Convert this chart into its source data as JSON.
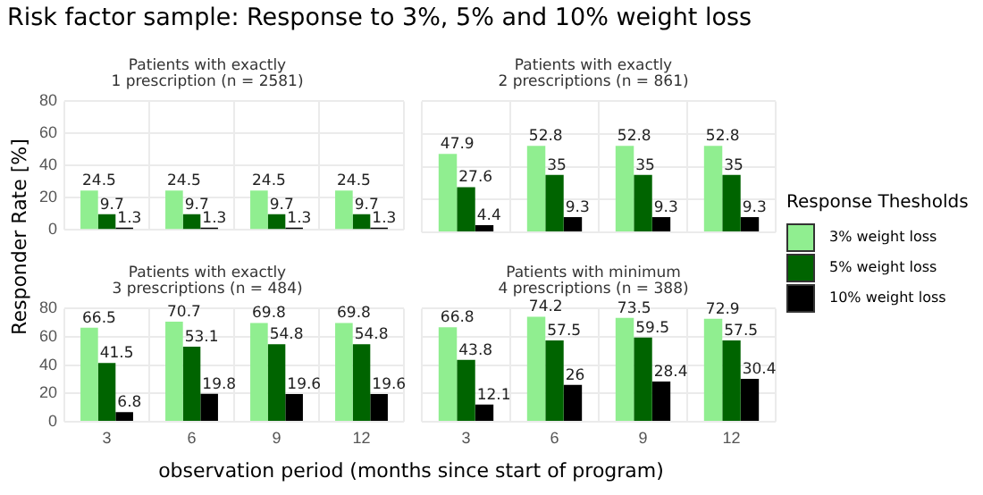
{
  "chart_data": [
    {
      "type": "bar",
      "title": "Risk factor sample: Response to 3%, 5% and 10% weight loss",
      "subtitle": "Patients with exactly\n1 prescription (n = 2581)",
      "xlabel": "observation period (months since start of program)",
      "ylabel": "Responder Rate [%]",
      "legend_title": "Response Thesholds",
      "legend": "right",
      "grid": true,
      "tick_labels": "y",
      "data_labels": true,
      "categories": [
        "3",
        "6",
        "9",
        "12"
      ],
      "ylim": [
        0,
        80
      ],
      "yticks": [
        0,
        20,
        40,
        60,
        80
      ],
      "series": [
        {
          "name": "3% weight loss",
          "color": "#90ee90",
          "values": [
            24.5,
            24.5,
            24.5,
            24.5
          ]
        },
        {
          "name": "5% weight loss",
          "color": "#006400",
          "values": [
            9.7,
            9.7,
            9.7,
            9.7
          ]
        },
        {
          "name": "10% weight loss",
          "color": "#000000",
          "values": [
            1.3,
            1.3,
            1.3,
            1.3
          ]
        }
      ]
    },
    {
      "type": "bar",
      "subtitle": "Patients with exactly\n2 prescriptions (n = 861)",
      "grid": true,
      "tick_labels": false,
      "data_labels": true,
      "categories": [
        "3",
        "6",
        "9",
        "12"
      ],
      "ylim": [
        0,
        80
      ],
      "yticks": [
        0,
        20,
        40,
        60,
        80
      ],
      "series": [
        {
          "color": "#90ee90",
          "values": [
            47.9,
            52.8,
            52.8,
            52.8
          ]
        },
        {
          "color": "#006400",
          "values": [
            27.6,
            35,
            35,
            35
          ]
        },
        {
          "color": "#000000",
          "values": [
            4.4,
            9.3,
            9.3,
            9.3
          ]
        }
      ]
    },
    {
      "type": "bar",
      "subtitle": "Patients with exactly\n3 prescriptions (n = 484)",
      "grid": true,
      "data_labels": true,
      "categories": [
        "3",
        "6",
        "9",
        "12"
      ],
      "ylim": [
        0,
        80
      ],
      "yticks": [
        0,
        20,
        40,
        60,
        80
      ],
      "series": [
        {
          "color": "#90ee90",
          "values": [
            66.5,
            70.7,
            69.8,
            69.8
          ]
        },
        {
          "color": "#006400",
          "values": [
            41.5,
            53.1,
            54.8,
            54.8
          ]
        },
        {
          "color": "#000000",
          "values": [
            6.8,
            19.8,
            19.6,
            19.6
          ]
        }
      ]
    },
    {
      "type": "bar",
      "subtitle": "Patients with minimum\n4 prescriptions (n = 388)",
      "grid": true,
      "tick_labels": "x",
      "data_labels": true,
      "categories": [
        "3",
        "6",
        "9",
        "12"
      ],
      "ylim": [
        0,
        80
      ],
      "yticks": [
        0,
        20,
        40,
        60,
        80
      ],
      "series": [
        {
          "color": "#90ee90",
          "values": [
            66.8,
            74.2,
            73.5,
            72.9
          ]
        },
        {
          "color": "#006400",
          "values": [
            43.8,
            57.5,
            59.5,
            57.5
          ]
        },
        {
          "color": "#000000",
          "values": [
            12.1,
            26,
            28.4,
            30.4
          ]
        }
      ]
    }
  ]
}
